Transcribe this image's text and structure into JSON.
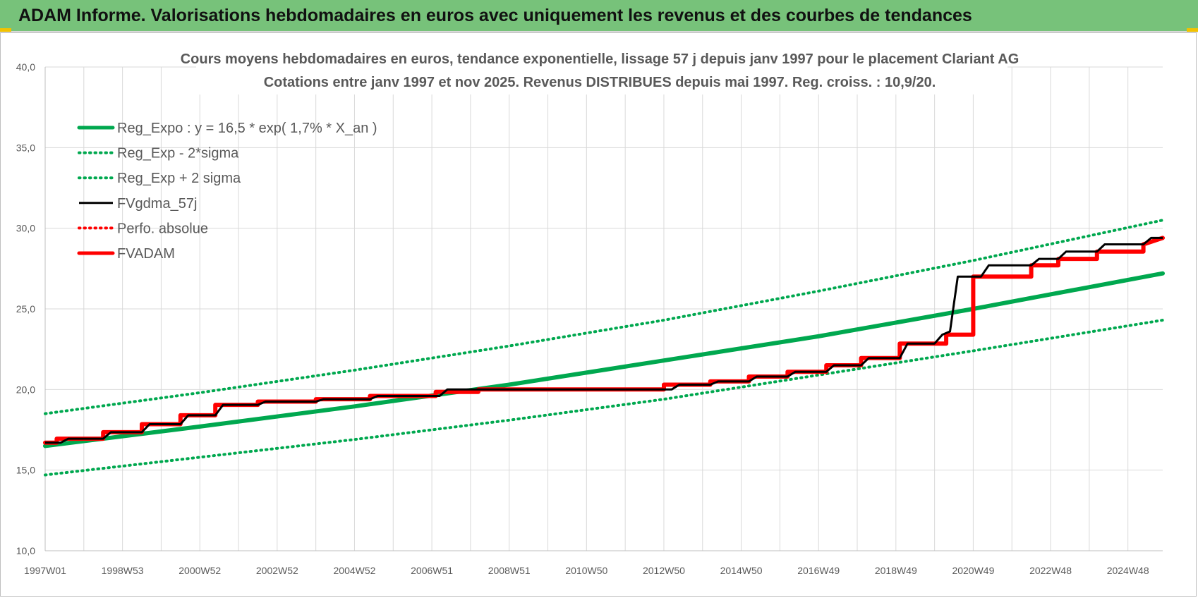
{
  "header": {
    "title": "ADAM Informe. Valorisations hebdomadaires en euros avec uniquement les revenus et des courbes de tendances"
  },
  "colors": {
    "header_bg": "#77c27a",
    "green": "#00a84f",
    "red": "#ff0000",
    "black": "#000000"
  },
  "chart_data": {
    "type": "line",
    "title": "Cours moyens hebdomadaires en euros, tendance exponentielle, lissage 57 j depuis janv 1997 pour le placement Clariant AG",
    "subtitle": "Cotations entre janv 1997 et nov 2025. Revenus DISTRIBUES depuis mai 1997.  Reg. croiss. : 10,9/20.",
    "ylim": [
      10,
      40
    ],
    "yticks": [
      "10,0",
      "15,0",
      "20,0",
      "25,0",
      "30,0",
      "35,0",
      "40,0"
    ],
    "xlim": [
      1997.0,
      2025.9
    ],
    "xticks": [
      {
        "label": "1997W01",
        "x": 1997.0
      },
      {
        "label": "1998W53",
        "x": 1999.0
      },
      {
        "label": "2000W52",
        "x": 2001.0
      },
      {
        "label": "2002W52",
        "x": 2003.0
      },
      {
        "label": "2004W52",
        "x": 2005.0
      },
      {
        "label": "2006W51",
        "x": 2007.0
      },
      {
        "label": "2008W51",
        "x": 2009.0
      },
      {
        "label": "2010W50",
        "x": 2011.0
      },
      {
        "label": "2012W50",
        "x": 2013.0
      },
      {
        "label": "2014W50",
        "x": 2015.0
      },
      {
        "label": "2016W49",
        "x": 2017.0
      },
      {
        "label": "2018W49",
        "x": 2019.0
      },
      {
        "label": "2020W49",
        "x": 2021.0
      },
      {
        "label": "2022W48",
        "x": 2023.0
      },
      {
        "label": "2024W48",
        "x": 2025.0
      }
    ],
    "grid": true,
    "legend_position": "top-left",
    "series": [
      {
        "name": "Reg_Expo : y = 16,5 * exp( 1,7% *  X_an )",
        "style": "solid-thick",
        "color": "#00a84f",
        "x": [
          1997.0,
          2001.0,
          2005.0,
          2009.0,
          2013.0,
          2017.0,
          2021.0,
          2025.9
        ],
        "y": [
          16.5,
          17.7,
          18.95,
          20.3,
          21.8,
          23.3,
          25.0,
          27.2
        ]
      },
      {
        "name": "Reg_Exp - 2*sigma",
        "style": "dotted",
        "color": "#00a84f",
        "x": [
          1997.0,
          2001.0,
          2005.0,
          2009.0,
          2013.0,
          2017.0,
          2021.0,
          2025.9
        ],
        "y": [
          14.7,
          15.8,
          16.9,
          18.1,
          19.4,
          20.9,
          22.4,
          24.3
        ]
      },
      {
        "name": "Reg_Exp + 2 sigma",
        "style": "dotted",
        "color": "#00a84f",
        "x": [
          1997.0,
          2001.0,
          2005.0,
          2009.0,
          2013.0,
          2017.0,
          2021.0,
          2025.9
        ],
        "y": [
          18.5,
          19.8,
          21.2,
          22.7,
          24.3,
          26.1,
          28.0,
          30.5
        ]
      },
      {
        "name": "FVgdma_57j",
        "style": "solid",
        "color": "#000000",
        "x": [
          1997.0,
          1997.4,
          1997.6,
          1998.5,
          1998.7,
          1999.5,
          1999.7,
          2000.5,
          2000.7,
          2001.4,
          2001.6,
          2002.5,
          2002.7,
          2004.0,
          2004.2,
          2005.4,
          2005.6,
          2007.2,
          2007.4,
          2013.2,
          2013.4,
          2014.2,
          2014.4,
          2015.2,
          2015.4,
          2016.2,
          2016.4,
          2017.2,
          2017.4,
          2018.1,
          2018.3,
          2019.1,
          2019.3,
          2020.0,
          2020.2,
          2020.4,
          2020.6,
          2021.2,
          2021.4,
          2022.5,
          2022.7,
          2023.2,
          2023.4,
          2024.2,
          2024.4,
          2025.4,
          2025.6,
          2025.9
        ],
        "y": [
          16.7,
          16.7,
          16.95,
          16.95,
          17.35,
          17.35,
          17.85,
          17.85,
          18.4,
          18.4,
          19.05,
          19.05,
          19.25,
          19.25,
          19.4,
          19.4,
          19.6,
          19.6,
          20.0,
          20.0,
          20.3,
          20.3,
          20.5,
          20.5,
          20.8,
          20.8,
          21.1,
          21.1,
          21.5,
          21.5,
          21.95,
          21.95,
          22.85,
          22.85,
          23.4,
          23.6,
          27.0,
          27.0,
          27.7,
          27.7,
          28.1,
          28.1,
          28.55,
          28.55,
          29.0,
          29.0,
          29.4,
          29.4
        ]
      },
      {
        "name": "Perfo. absolue",
        "style": "dotted",
        "color": "#ff0000",
        "x": [],
        "y": []
      },
      {
        "name": "FVADAM",
        "style": "solid-thick",
        "color": "#ff0000",
        "x": [
          1997.0,
          1997.3,
          1997.3,
          1998.5,
          1998.5,
          1999.5,
          1999.5,
          2000.5,
          2000.5,
          2001.4,
          2001.4,
          2002.5,
          2002.5,
          2004.0,
          2004.0,
          2005.4,
          2005.4,
          2007.1,
          2007.1,
          2008.2,
          2008.2,
          2013.0,
          2013.0,
          2014.2,
          2014.2,
          2015.2,
          2015.2,
          2016.2,
          2016.2,
          2017.2,
          2017.2,
          2018.1,
          2018.1,
          2019.1,
          2019.1,
          2020.3,
          2020.3,
          2021.0,
          2021.0,
          2022.5,
          2022.5,
          2023.2,
          2023.2,
          2024.2,
          2024.2,
          2025.4,
          2025.4,
          2025.9
        ],
        "y": [
          16.7,
          16.7,
          16.95,
          16.95,
          17.35,
          17.35,
          17.85,
          17.85,
          18.4,
          18.4,
          19.05,
          19.05,
          19.25,
          19.25,
          19.4,
          19.4,
          19.6,
          19.6,
          19.85,
          19.85,
          20.0,
          20.0,
          20.3,
          20.3,
          20.5,
          20.5,
          20.8,
          20.8,
          21.1,
          21.1,
          21.5,
          21.5,
          21.95,
          21.95,
          22.85,
          22.85,
          23.4,
          23.4,
          27.0,
          27.0,
          27.7,
          27.7,
          28.1,
          28.1,
          28.55,
          28.55,
          29.0,
          29.4
        ]
      }
    ]
  }
}
